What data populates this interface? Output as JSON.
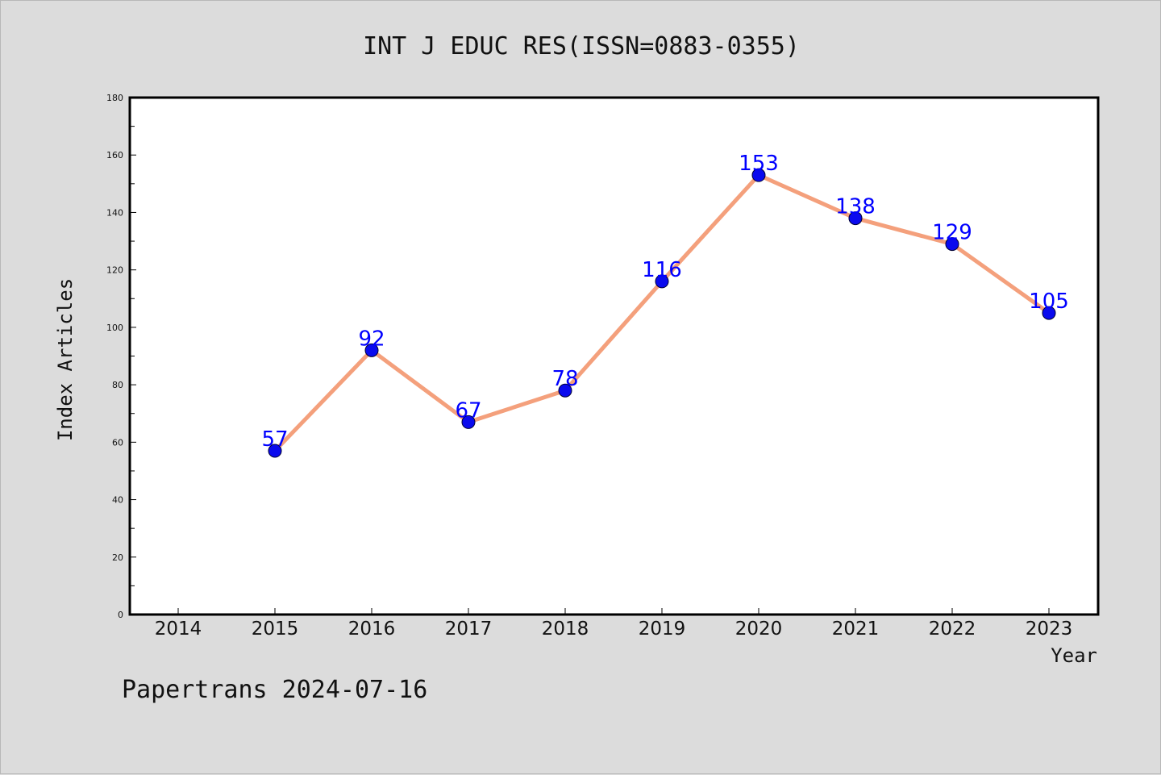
{
  "chart_data": {
    "type": "line",
    "title": "INT J EDUC RES(ISSN=0883-0355)",
    "xlabel": "Year",
    "ylabel": "Index Articles",
    "categories": [
      "2014",
      "2015",
      "2016",
      "2017",
      "2018",
      "2019",
      "2020",
      "2021",
      "2022",
      "2023"
    ],
    "series": [
      {
        "x": [
          "2015",
          "2016",
          "2017",
          "2018",
          "2019",
          "2020",
          "2021",
          "2022",
          "2023"
        ],
        "values": [
          57,
          92,
          67,
          78,
          116,
          153,
          138,
          129,
          105
        ]
      }
    ],
    "ylim": [
      0,
      180
    ],
    "yticks": [
      0,
      20,
      40,
      60,
      80,
      100,
      120,
      140,
      160,
      180
    ],
    "grid": false,
    "data_labels": true,
    "colors": {
      "line": "#f4a07c",
      "marker": "#0a0aee",
      "marker_edge": "#000033",
      "data_label": "#0000ff",
      "background": "#dcdcdc",
      "plot_background": "#ffffff"
    }
  },
  "footer": {
    "text": "Papertrans 2024-07-16"
  }
}
